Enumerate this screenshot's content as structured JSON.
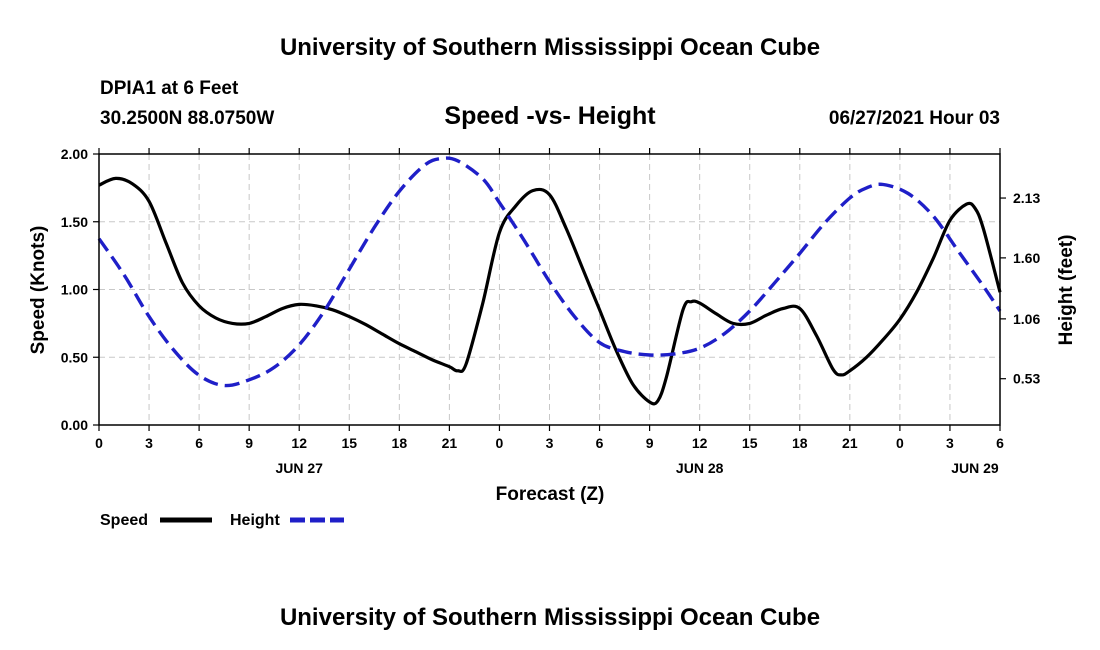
{
  "header": {
    "title": "University of Southern Mississippi Ocean Cube",
    "station": "DPIA1 at 6 Feet",
    "coords": "30.2500N  88.0750W",
    "subtitle": "Speed -vs- Height",
    "datetime": "06/27/2021 Hour 03"
  },
  "footer": {
    "title": "University of Southern Mississippi Ocean Cube"
  },
  "chart_data": {
    "type": "line",
    "title": "Speed -vs- Height",
    "xlabel": "Forecast (Z)",
    "ylabel": "Speed (Knots)",
    "y2label": "Height (feet)",
    "xlim": [
      0,
      54
    ],
    "ylim": [
      0,
      2.0
    ],
    "y2lim": [
      0.12,
      2.52
    ],
    "grid": true,
    "x_ticks": [
      0,
      3,
      6,
      9,
      12,
      15,
      18,
      21,
      24,
      27,
      30,
      33,
      36,
      39,
      42,
      45,
      48,
      51,
      54
    ],
    "x_tick_labels": [
      "0",
      "3",
      "6",
      "9",
      "12",
      "15",
      "18",
      "21",
      "0",
      "3",
      "6",
      "9",
      "12",
      "15",
      "18",
      "21",
      "0",
      "3",
      "6"
    ],
    "date_labels": [
      {
        "x": 12,
        "label": "JUN 27"
      },
      {
        "x": 36,
        "label": "JUN 28"
      },
      {
        "x": 52.5,
        "label": "JUN 29"
      }
    ],
    "y_ticks": [
      0,
      0.5,
      1.0,
      1.5,
      2.0
    ],
    "y_tick_labels": [
      "0.00",
      "0.50",
      "1.00",
      "1.50",
      "2.00"
    ],
    "y2_ticks": [
      0.53,
      1.06,
      1.6,
      2.13
    ],
    "y2_tick_labels": [
      "0.53",
      "1.06",
      "1.60",
      "2.13"
    ],
    "series": [
      {
        "name": "Speed",
        "axis": "left",
        "color": "#000000",
        "style": "solid",
        "x": [
          0,
          1,
          2,
          3,
          4,
          5,
          6,
          7,
          8,
          9,
          10,
          11,
          12,
          13,
          14,
          15,
          16,
          17,
          18,
          19,
          20,
          21,
          21.5,
          22,
          23,
          24,
          25,
          26,
          27,
          28,
          29,
          30,
          31,
          32,
          33,
          33.5,
          34,
          35,
          35.5,
          36,
          37,
          38,
          39,
          40,
          41,
          42,
          43,
          44,
          44.5,
          45,
          46,
          47,
          48,
          49,
          50,
          51,
          52,
          52.5,
          53,
          54
        ],
        "values": [
          1.77,
          1.82,
          1.78,
          1.65,
          1.35,
          1.05,
          0.88,
          0.79,
          0.75,
          0.75,
          0.8,
          0.86,
          0.89,
          0.88,
          0.85,
          0.8,
          0.74,
          0.67,
          0.6,
          0.54,
          0.48,
          0.43,
          0.4,
          0.45,
          0.9,
          1.42,
          1.62,
          1.73,
          1.7,
          1.45,
          1.15,
          0.85,
          0.55,
          0.3,
          0.17,
          0.18,
          0.35,
          0.85,
          0.91,
          0.9,
          0.82,
          0.75,
          0.75,
          0.81,
          0.86,
          0.86,
          0.66,
          0.41,
          0.37,
          0.4,
          0.5,
          0.63,
          0.78,
          0.98,
          1.23,
          1.51,
          1.63,
          1.6,
          1.45,
          0.98
        ]
      },
      {
        "name": "Height",
        "axis": "right",
        "color": "#1f1fc8",
        "style": "dashed",
        "x": [
          0,
          1.5,
          3,
          4.5,
          6,
          7.5,
          9,
          10.5,
          12,
          13.5,
          15,
          16.5,
          18,
          19.5,
          20.5,
          21.5,
          23,
          24,
          25.5,
          27,
          28.5,
          30,
          31.5,
          33,
          34.5,
          36,
          37.5,
          39,
          40.5,
          42,
          43.5,
          45,
          46,
          47,
          48.5,
          50,
          51.5,
          53,
          54
        ],
        "values": [
          1.77,
          1.45,
          1.08,
          0.78,
          0.56,
          0.47,
          0.52,
          0.63,
          0.83,
          1.13,
          1.5,
          1.87,
          2.19,
          2.42,
          2.48,
          2.46,
          2.3,
          2.09,
          1.75,
          1.39,
          1.08,
          0.85,
          0.77,
          0.74,
          0.75,
          0.8,
          0.93,
          1.13,
          1.38,
          1.64,
          1.91,
          2.13,
          2.22,
          2.25,
          2.17,
          1.97,
          1.66,
          1.35,
          1.13
        ]
      }
    ],
    "legend": [
      {
        "label": "Speed",
        "color": "#000000",
        "style": "solid"
      },
      {
        "label": "Height",
        "color": "#1f1fc8",
        "style": "dashed"
      }
    ]
  }
}
